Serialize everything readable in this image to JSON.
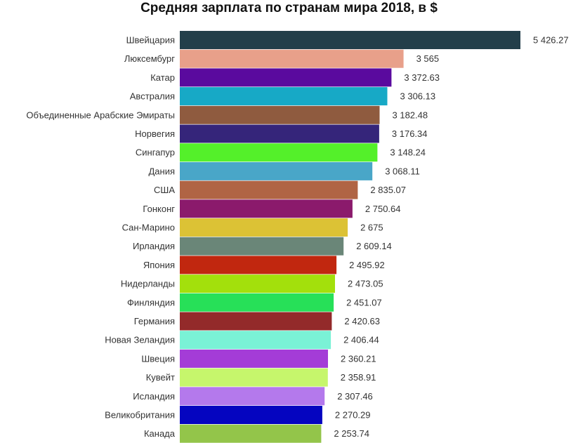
{
  "chart_data": {
    "type": "bar",
    "orientation": "horizontal",
    "title": "Средняя зарплата по странам мира 2018, в $",
    "xlabel": "",
    "ylabel": "",
    "xlim": [
      0,
      5800
    ],
    "grid": false,
    "legend": "none",
    "categories": [
      "Швейцария",
      "Люксембург",
      "Катар",
      "Австралия",
      "Объединенные Арабские Эмираты",
      "Норвегия",
      "Сингапур",
      "Дания",
      "США",
      "Гонконг",
      "Сан-Марино",
      "Ирландия",
      "Япония",
      "Нидерланды",
      "Финляндия",
      "Германия",
      "Новая Зеландия",
      "Швеция",
      "Кувейт",
      "Исландия",
      "Великобритания",
      "Канада"
    ],
    "values": [
      5426.27,
      3565,
      3372.63,
      3306.13,
      3182.48,
      3176.34,
      3148.24,
      3068.11,
      2835.07,
      2750.64,
      2675,
      2609.14,
      2495.92,
      2473.05,
      2451.07,
      2420.63,
      2406.44,
      2360.21,
      2358.91,
      2307.46,
      2270.29,
      2253.74
    ],
    "value_labels": [
      "5 426.27",
      "3 565",
      "3 372.63",
      "3 306.13",
      "3 182.48",
      "3 176.34",
      "3 148.24",
      "3 068.11",
      "2 835.07",
      "2 750.64",
      "2 675",
      "2 609.14",
      "2 495.92",
      "2 473.05",
      "2 451.07",
      "2 420.63",
      "2 406.44",
      "2 360.21",
      "2 358.91",
      "2 307.46",
      "2 270.29",
      "2 253.74"
    ],
    "colors": [
      "#233f4a",
      "#e8a08a",
      "#5a0a9e",
      "#17a9c6",
      "#8f5b3f",
      "#35257a",
      "#54f02a",
      "#49a6c8",
      "#b06444",
      "#8b1a6c",
      "#dcc235",
      "#6a8678",
      "#c1270f",
      "#a3e00c",
      "#27e058",
      "#932a2a",
      "#7af2d6",
      "#a43cd7",
      "#c6f66c",
      "#b479ec",
      "#0505c0",
      "#93c54a"
    ]
  }
}
